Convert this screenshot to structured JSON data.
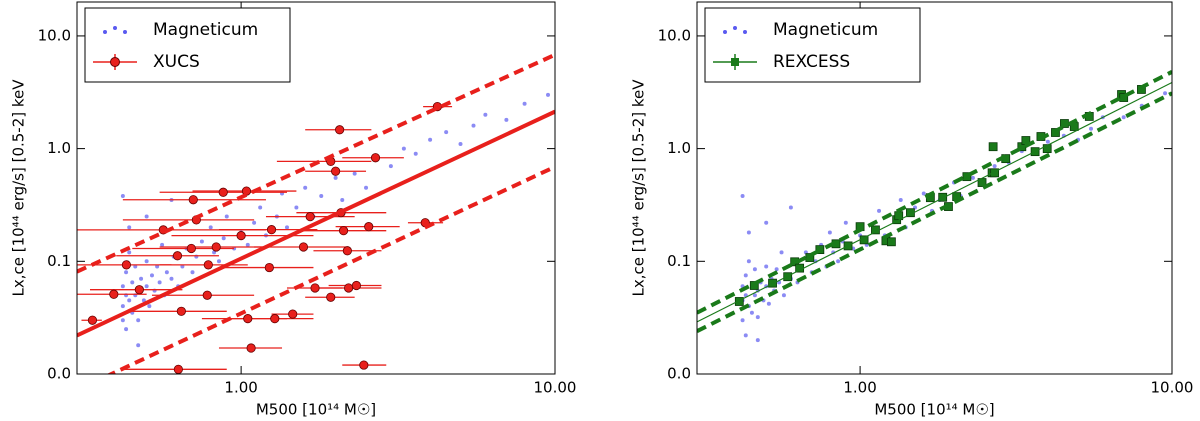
{
  "chart_data": [
    {
      "type": "scatter",
      "x_label": "M500 [10¹⁴ M☉]",
      "y_label": "Lx,ce [10⁴⁴ erg/s] [0.5-2] keV",
      "log_x": true,
      "log_y": true,
      "legend": "upper left",
      "xlim": [
        0.3,
        10
      ],
      "ylim": [
        0.01,
        20
      ],
      "xticks": [
        {
          "value": 1,
          "label": "1.00"
        },
        {
          "value": 10,
          "label": "10.00"
        }
      ],
      "yticks": [
        {
          "value": 0.01,
          "label": "0.0"
        },
        0.1,
        {
          "value": 1,
          "label": "1.0"
        },
        {
          "value": 10,
          "label": "10.0"
        }
      ],
      "series": [
        {
          "name": "Magneticum",
          "color": "#5a5af0",
          "x": [
            0.42,
            0.42,
            0.42,
            0.43,
            0.43,
            0.43,
            0.44,
            0.44,
            0.45,
            0.45,
            0.46,
            0.46,
            0.47,
            0.47,
            0.48,
            0.49,
            0.5,
            0.5,
            0.51,
            0.52,
            0.53,
            0.54,
            0.55,
            0.56,
            0.57,
            0.58,
            0.6,
            0.61,
            0.63,
            0.65,
            0.67,
            0.7,
            0.72,
            0.75,
            0.78,
            0.8,
            0.82,
            0.85,
            0.88,
            0.9,
            0.95,
            1.0,
            1.05,
            1.1,
            1.15,
            1.2,
            1.3,
            1.35,
            1.4,
            1.5,
            1.6,
            1.7,
            1.8,
            2.0,
            2.1,
            2.3,
            2.5,
            2.7,
            3.0,
            3.3,
            3.6,
            4.0,
            4.5,
            5.0,
            5.5,
            6.0,
            7.0,
            8.0,
            9.5,
            0.44,
            0.42,
            0.5,
            0.6,
            0.47
          ],
          "values": [
            0.04,
            0.06,
            0.03,
            0.05,
            0.08,
            0.025,
            0.045,
            0.12,
            0.035,
            0.065,
            0.05,
            0.09,
            0.03,
            0.055,
            0.07,
            0.045,
            0.06,
            0.1,
            0.04,
            0.075,
            0.055,
            0.09,
            0.065,
            0.14,
            0.05,
            0.08,
            0.07,
            0.11,
            0.06,
            0.09,
            0.13,
            0.08,
            0.11,
            0.15,
            0.09,
            0.2,
            0.12,
            0.1,
            0.16,
            0.25,
            0.13,
            0.18,
            0.14,
            0.22,
            0.3,
            0.17,
            0.25,
            0.4,
            0.2,
            0.3,
            0.45,
            0.25,
            0.38,
            0.55,
            0.35,
            0.6,
            0.45,
            0.8,
            0.7,
            1.0,
            0.9,
            1.2,
            1.4,
            1.1,
            1.6,
            2.0,
            1.8,
            2.5,
            3.0,
            0.2,
            0.38,
            0.25,
            0.35,
            0.018
          ]
        },
        {
          "name": "XUCS",
          "color": "#e8201c",
          "x": [
            0.336,
            0.431,
            0.393,
            0.474,
            0.631,
            0.645,
            0.704,
            0.877,
            1.04,
            0.72,
            0.694,
            0.786,
            0.78,
            0.627,
            0.565,
            0.833,
            1.0,
            1.05,
            1.076,
            1.28,
            1.23,
            1.46,
            1.25,
            1.58,
            1.72,
            1.93,
            2.2,
            2.33,
            2.46,
            2.12,
            2.08,
            1.66,
            2.18,
            2.55,
            2.06,
            1.93,
            2.0,
            2.68,
            3.86,
            4.22
          ],
          "values": [
            0.03,
            0.093,
            0.051,
            0.056,
            0.011,
            0.036,
            0.352,
            0.41,
            0.42,
            0.233,
            0.13,
            0.093,
            0.05,
            0.112,
            0.19,
            0.134,
            0.169,
            0.031,
            0.017,
            0.031,
            0.088,
            0.034,
            0.191,
            0.134,
            0.058,
            0.048,
            0.058,
            0.061,
            0.012,
            0.187,
            0.27,
            0.249,
            0.124,
            0.203,
            1.47,
            0.77,
            0.63,
            0.83,
            0.22,
            2.36
          ],
          "x_low": [
            0.31,
            0.3,
            0.3,
            0.33,
            0.42,
            0.45,
            0.42,
            0.55,
            0.7,
            0.42,
            0.45,
            0.55,
            0.52,
            0.4,
            0.3,
            0.55,
            0.6,
            0.75,
            0.85,
            0.9,
            0.85,
            1.25,
            0.85,
            1.1,
            1.4,
            1.6,
            1.7,
            1.9,
            2.1,
            1.55,
            1.5,
            1.2,
            1.7,
            2.0,
            1.6,
            1.3,
            1.6,
            2.1,
            3.4,
            3.8
          ],
          "x_high": [
            0.36,
            0.6,
            0.5,
            0.65,
            0.9,
            0.9,
            1.2,
            1.4,
            1.5,
            1.1,
            0.95,
            1.05,
            1.1,
            0.85,
            1.2,
            1.2,
            1.7,
            1.4,
            1.35,
            1.7,
            1.7,
            1.7,
            1.75,
            2.2,
            2.1,
            2.3,
            2.8,
            2.8,
            2.9,
            2.9,
            2.9,
            2.3,
            2.8,
            3.2,
            2.6,
            2.6,
            2.5,
            3.3,
            4.4,
            4.7
          ]
        }
      ],
      "lines": [
        {
          "color": "#e8201c",
          "style": "solid",
          "x": [
            0.3,
            10
          ],
          "values": [
            0.022,
            2.13
          ]
        },
        {
          "color": "#e8201c",
          "style": "dashed",
          "x": [
            0.3,
            10
          ],
          "values": [
            0.081,
            6.8
          ]
        },
        {
          "color": "#e8201c",
          "style": "dashed",
          "x": [
            0.3,
            10
          ],
          "values": [
            0.0072,
            0.69
          ]
        }
      ]
    },
    {
      "type": "scatter",
      "x_label": "M500 [10¹⁴ M☉]",
      "y_label": "Lx,ce [10⁴⁴ erg/s] [0.5-2] keV",
      "log_x": true,
      "log_y": true,
      "legend": "upper left",
      "xlim": [
        0.3,
        10
      ],
      "ylim": [
        0.01,
        20
      ],
      "xticks": [
        {
          "value": 1,
          "label": "1.00"
        },
        {
          "value": 10,
          "label": "10.00"
        }
      ],
      "yticks": [
        {
          "value": 0.01,
          "label": "0.0"
        },
        0.1,
        {
          "value": 1,
          "label": "1.0"
        },
        {
          "value": 10,
          "label": "10.0"
        }
      ],
      "series": [
        {
          "name": "Magneticum",
          "color": "#5a5af0",
          "x": [
            0.42,
            0.42,
            0.42,
            0.43,
            0.43,
            0.43,
            0.44,
            0.44,
            0.45,
            0.45,
            0.46,
            0.46,
            0.47,
            0.47,
            0.48,
            0.49,
            0.5,
            0.5,
            0.51,
            0.52,
            0.53,
            0.54,
            0.55,
            0.56,
            0.57,
            0.58,
            0.6,
            0.61,
            0.63,
            0.65,
            0.67,
            0.7,
            0.72,
            0.75,
            0.78,
            0.8,
            0.82,
            0.85,
            0.88,
            0.9,
            0.95,
            1.0,
            1.05,
            1.1,
            1.15,
            1.2,
            1.3,
            1.35,
            1.4,
            1.5,
            1.6,
            1.7,
            1.8,
            2.0,
            2.1,
            2.3,
            2.5,
            2.7,
            3.0,
            3.3,
            3.6,
            4.0,
            4.5,
            5.0,
            5.5,
            6.0,
            7.0,
            8.0,
            9.5,
            0.44,
            0.42,
            0.5,
            0.6,
            0.47
          ],
          "values": [
            0.045,
            0.06,
            0.03,
            0.05,
            0.075,
            0.022,
            0.04,
            0.1,
            0.035,
            0.06,
            0.05,
            0.085,
            0.032,
            0.055,
            0.065,
            0.045,
            0.06,
            0.09,
            0.042,
            0.07,
            0.055,
            0.085,
            0.065,
            0.12,
            0.05,
            0.075,
            0.07,
            0.1,
            0.065,
            0.085,
            0.12,
            0.08,
            0.1,
            0.14,
            0.09,
            0.18,
            0.12,
            0.1,
            0.15,
            0.22,
            0.13,
            0.17,
            0.14,
            0.2,
            0.28,
            0.17,
            0.24,
            0.35,
            0.2,
            0.3,
            0.4,
            0.28,
            0.35,
            0.5,
            0.38,
            0.55,
            0.5,
            0.7,
            0.75,
            0.95,
            0.9,
            1.15,
            1.3,
            1.2,
            1.5,
            1.9,
            1.9,
            2.4,
            3.1,
            0.18,
            0.38,
            0.22,
            0.3,
            0.02
          ]
        },
        {
          "name": "REXCESS",
          "color": "#1a7a1a",
          "x": [
            0.41,
            0.458,
            0.524,
            0.586,
            0.617,
            0.64,
            0.69,
            0.743,
            0.837,
            0.915,
            1.0,
            1.03,
            1.12,
            1.21,
            1.26,
            1.31,
            1.33,
            1.45,
            1.68,
            1.84,
            1.92,
            2.04,
            2.2,
            2.46,
            2.65,
            2.7,
            2.93,
            3.3,
            3.4,
            3.64,
            3.8,
            3.98,
            4.23,
            4.52,
            4.86,
            5.43,
            6.89,
            7.0,
            7.98,
            2.67
          ],
          "values": [
            0.044,
            0.061,
            0.064,
            0.073,
            0.099,
            0.087,
            0.108,
            0.127,
            0.143,
            0.137,
            0.203,
            0.155,
            0.19,
            0.152,
            0.149,
            0.234,
            0.254,
            0.27,
            0.367,
            0.37,
            0.306,
            0.375,
            0.564,
            0.5,
            0.61,
            0.61,
            0.815,
            1.04,
            1.18,
            0.94,
            1.28,
            1.0,
            1.39,
            1.67,
            1.57,
            1.93,
            3.02,
            2.84,
            3.35,
            1.04
          ]
        }
      ],
      "lines": [
        {
          "color": "#1a7a1a",
          "style": "solid",
          "x": [
            0.3,
            10
          ],
          "values": [
            0.029,
            3.86
          ]
        },
        {
          "color": "#1a7a1a",
          "style": "dashed",
          "x": [
            0.3,
            10
          ],
          "values": [
            0.035,
            4.8
          ]
        },
        {
          "color": "#1a7a1a",
          "style": "dashed",
          "x": [
            0.3,
            10
          ],
          "values": [
            0.024,
            3.1
          ]
        }
      ]
    }
  ]
}
